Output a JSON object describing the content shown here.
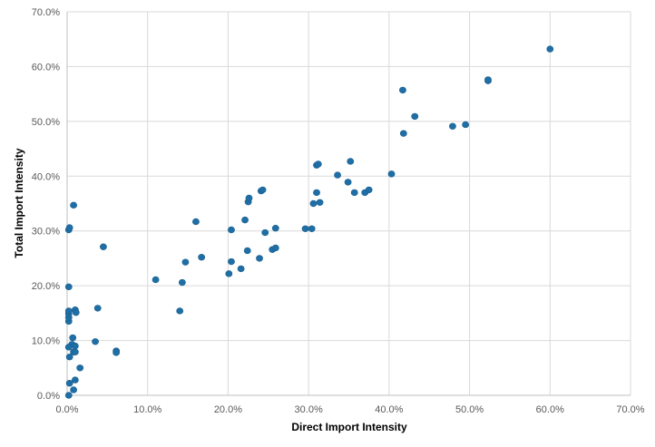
{
  "chart_data": {
    "type": "scatter",
    "xlabel": "Direct Import Intensity",
    "ylabel": "Total Import Intensity",
    "xlim": [
      0,
      70
    ],
    "ylim": [
      0,
      70
    ],
    "x_ticks": [
      "0.0%",
      "10.0%",
      "20.0%",
      "30.0%",
      "40.0%",
      "50.0%",
      "60.0%",
      "70.0%"
    ],
    "y_ticks": [
      "0.0%",
      "10.0%",
      "20.0%",
      "30.0%",
      "40.0%",
      "50.0%",
      "60.0%",
      "70.0%"
    ],
    "grid": true,
    "legend": "none",
    "marker_color": "#1f6fa6",
    "points": [
      [
        0.2,
        0.0
      ],
      [
        0.3,
        2.2
      ],
      [
        1.0,
        2.8
      ],
      [
        0.8,
        1.0
      ],
      [
        1.6,
        5.0
      ],
      [
        0.3,
        7.0
      ],
      [
        0.8,
        7.9
      ],
      [
        1.0,
        7.9
      ],
      [
        0.6,
        9.3
      ],
      [
        0.2,
        8.8
      ],
      [
        1.0,
        9.0
      ],
      [
        0.7,
        10.5
      ],
      [
        0.2,
        13.5
      ],
      [
        0.2,
        14.2
      ],
      [
        0.2,
        14.9
      ],
      [
        0.2,
        15.4
      ],
      [
        1.0,
        15.6
      ],
      [
        1.1,
        15.1
      ],
      [
        0.2,
        19.8
      ],
      [
        0.8,
        34.7
      ],
      [
        0.2,
        30.2
      ],
      [
        0.3,
        30.6
      ],
      [
        3.5,
        9.8
      ],
      [
        3.8,
        15.9
      ],
      [
        4.5,
        27.1
      ],
      [
        6.1,
        8.1
      ],
      [
        6.1,
        7.8
      ],
      [
        11.0,
        21.1
      ],
      [
        14.0,
        15.4
      ],
      [
        14.3,
        20.6
      ],
      [
        14.7,
        24.3
      ],
      [
        16.0,
        31.7
      ],
      [
        16.7,
        25.2
      ],
      [
        20.1,
        22.2
      ],
      [
        20.4,
        24.4
      ],
      [
        20.4,
        30.2
      ],
      [
        21.6,
        23.1
      ],
      [
        22.1,
        32.0
      ],
      [
        22.4,
        26.4
      ],
      [
        22.5,
        35.3
      ],
      [
        22.6,
        36.0
      ],
      [
        23.9,
        25.0
      ],
      [
        24.1,
        37.3
      ],
      [
        24.3,
        37.5
      ],
      [
        24.6,
        29.7
      ],
      [
        25.5,
        26.6
      ],
      [
        25.9,
        26.9
      ],
      [
        25.9,
        30.5
      ],
      [
        29.6,
        30.4
      ],
      [
        30.4,
        30.4
      ],
      [
        30.6,
        35.0
      ],
      [
        31.0,
        37.0
      ],
      [
        31.0,
        42.0
      ],
      [
        31.2,
        42.2
      ],
      [
        31.4,
        35.2
      ],
      [
        33.6,
        40.2
      ],
      [
        34.9,
        38.9
      ],
      [
        35.2,
        42.7
      ],
      [
        35.7,
        37.0
      ],
      [
        37.0,
        37.0
      ],
      [
        37.5,
        37.5
      ],
      [
        40.3,
        40.4
      ],
      [
        41.7,
        55.7
      ],
      [
        41.8,
        47.8
      ],
      [
        43.2,
        50.9
      ],
      [
        47.9,
        49.1
      ],
      [
        49.5,
        49.4
      ],
      [
        52.3,
        57.4
      ],
      [
        52.3,
        57.6
      ],
      [
        60.0,
        63.2
      ]
    ]
  }
}
